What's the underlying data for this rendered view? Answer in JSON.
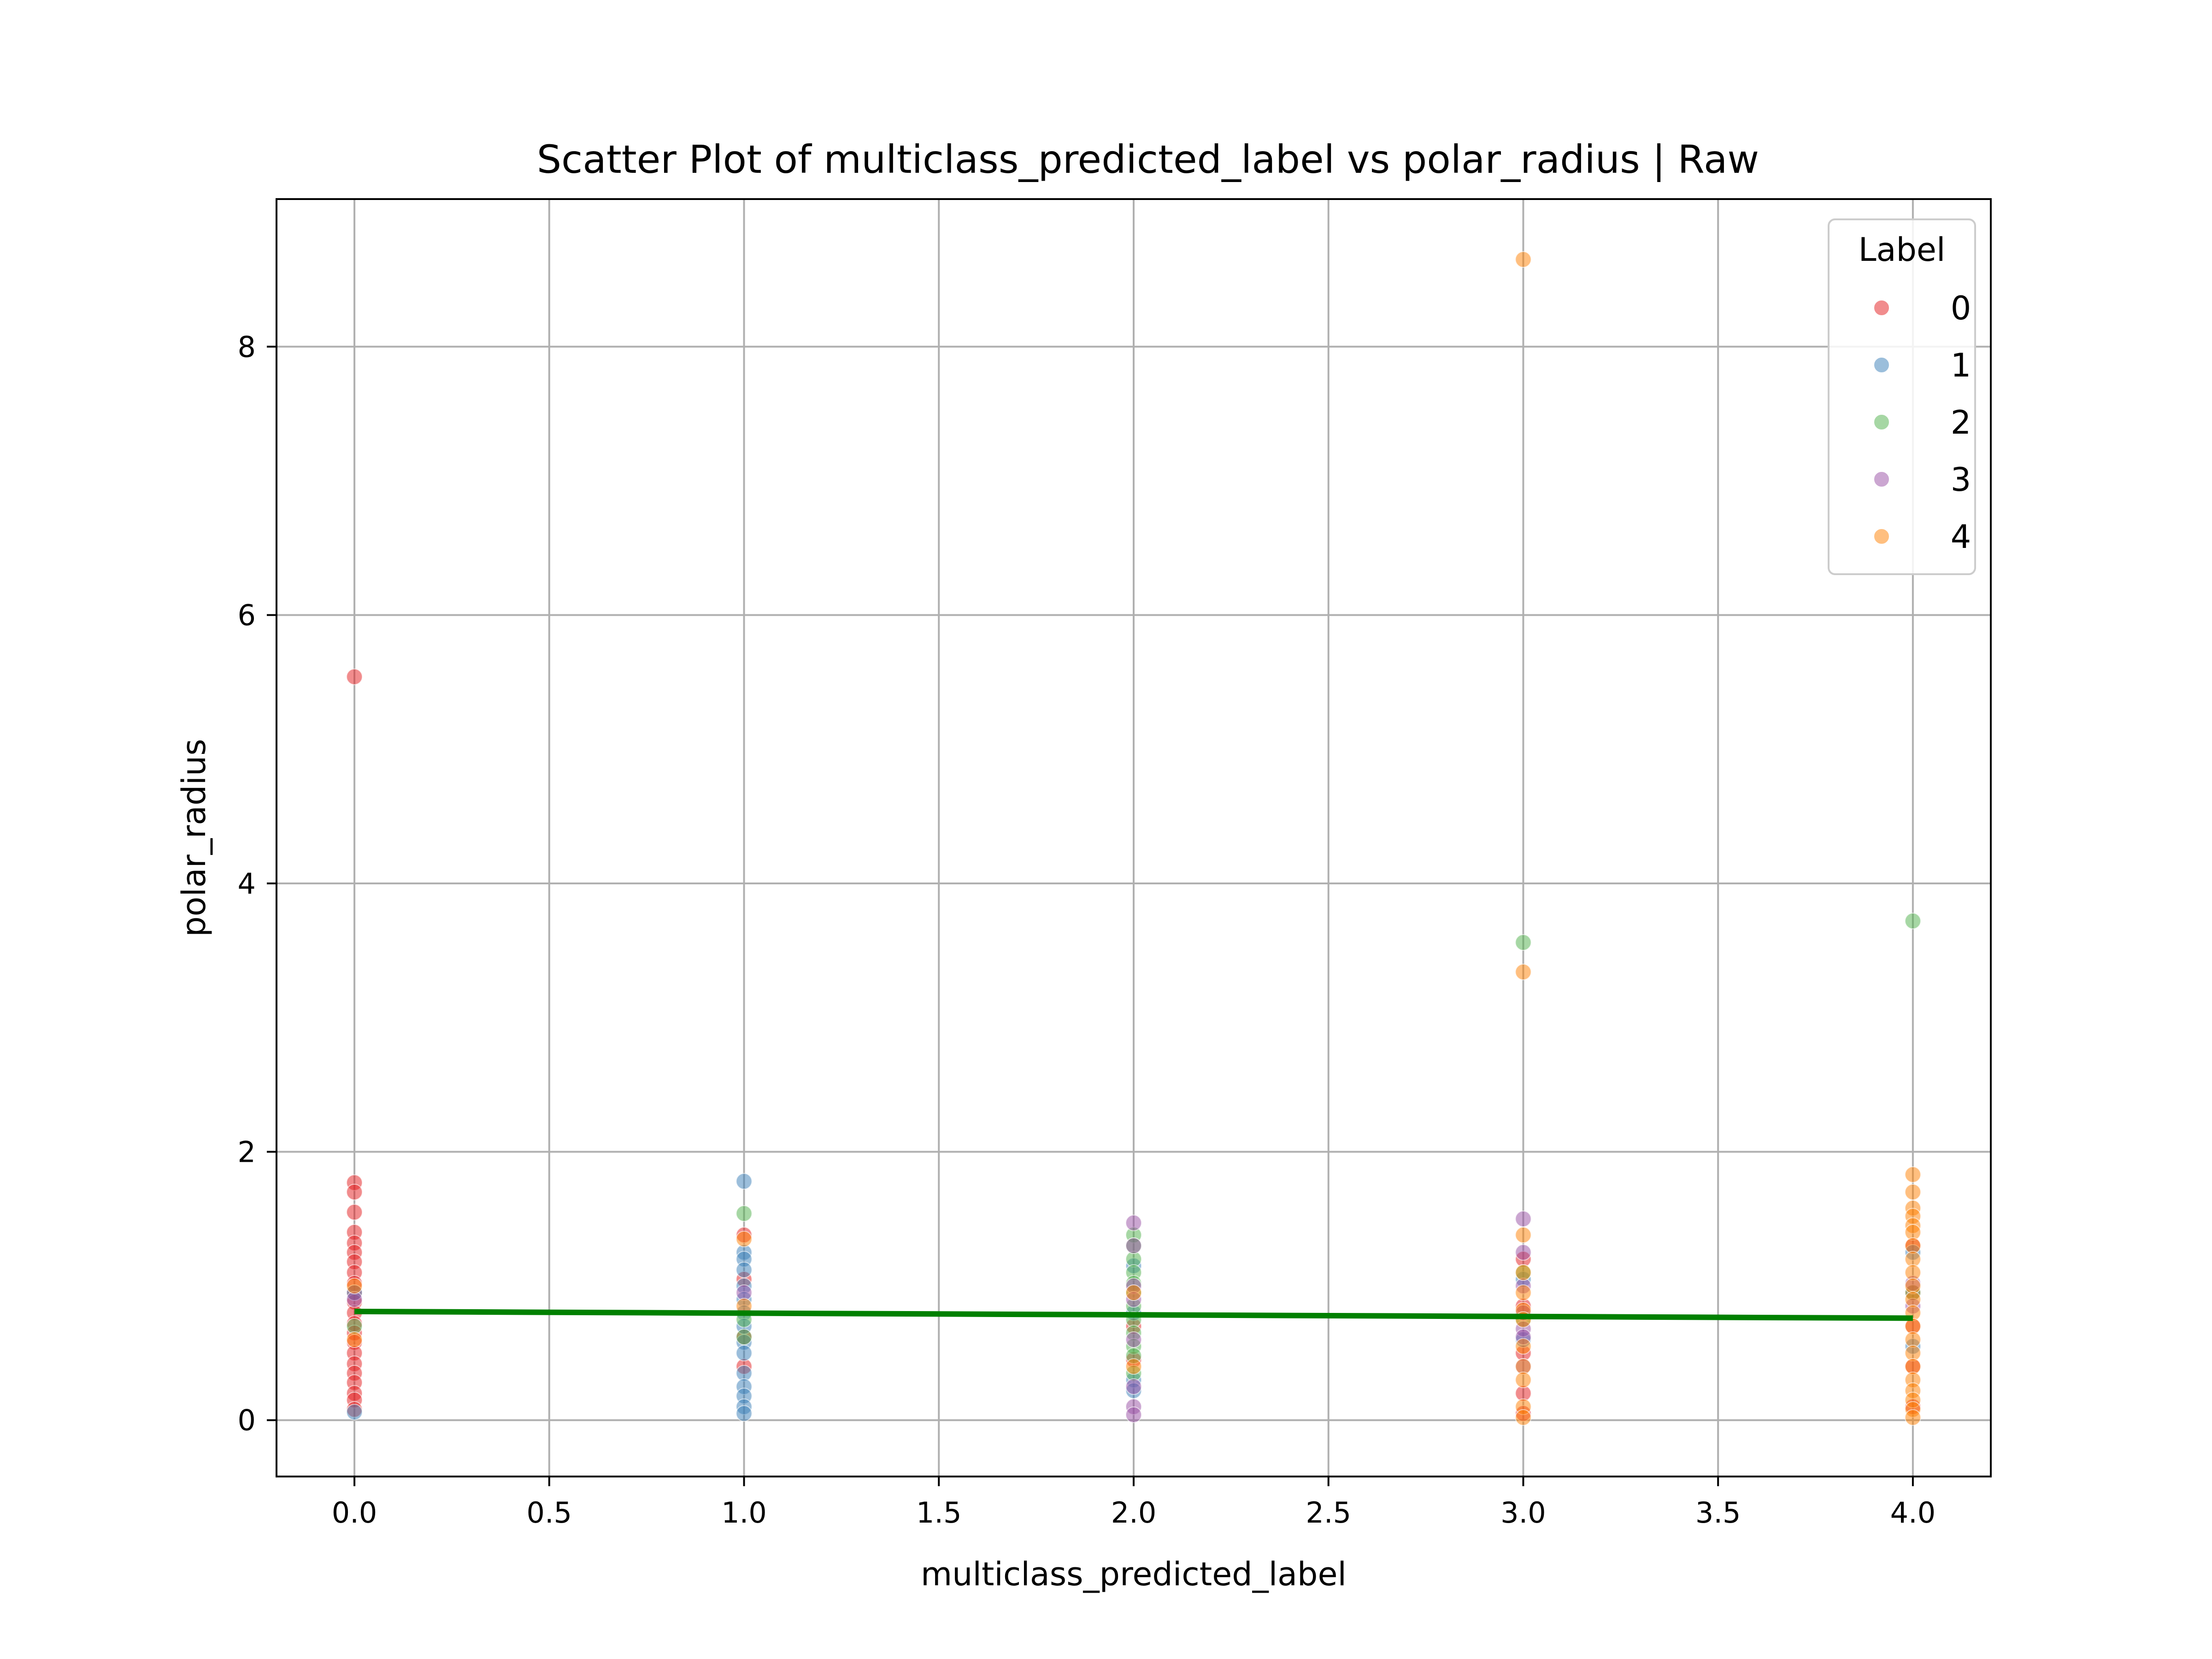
{
  "chart_data": {
    "type": "scatter",
    "title": "Scatter Plot of multiclass_predicted_label vs polar_radius | Raw",
    "xlabel": "multiclass_predicted_label",
    "ylabel": "polar_radius",
    "xlim": [
      -0.2,
      4.2
    ],
    "ylim": [
      -0.42,
      9.1
    ],
    "xticks": [
      0.0,
      0.5,
      1.0,
      1.5,
      2.0,
      2.5,
      3.0,
      3.5,
      4.0
    ],
    "xtick_labels": [
      "0.0",
      "0.5",
      "1.0",
      "1.5",
      "2.0",
      "2.5",
      "3.0",
      "3.5",
      "4.0"
    ],
    "yticks": [
      0,
      2,
      4,
      6,
      8
    ],
    "ytick_labels": [
      "0",
      "2",
      "4",
      "6",
      "8"
    ],
    "grid": true,
    "legend": {
      "title": "Label",
      "placement": "top-right",
      "entries": [
        {
          "label": "0",
          "color": "#e41a1c"
        },
        {
          "label": "1",
          "color": "#377eb8"
        },
        {
          "label": "2",
          "color": "#4daf4a"
        },
        {
          "label": "3",
          "color": "#984ea3"
        },
        {
          "label": "4",
          "color": "#ff7f00"
        }
      ]
    },
    "series": [
      {
        "label": "0",
        "color": "#e41a1c",
        "points": [
          [
            0,
            5.54
          ],
          [
            0,
            1.77
          ],
          [
            0,
            1.7
          ],
          [
            0,
            1.55
          ],
          [
            0,
            1.4
          ],
          [
            0,
            1.32
          ],
          [
            0,
            1.25
          ],
          [
            0,
            1.18
          ],
          [
            0,
            1.1
          ],
          [
            0,
            1.02
          ],
          [
            0,
            0.95
          ],
          [
            0,
            0.88
          ],
          [
            0,
            0.8
          ],
          [
            0,
            0.72
          ],
          [
            0,
            0.65
          ],
          [
            0,
            0.58
          ],
          [
            0,
            0.5
          ],
          [
            0,
            0.42
          ],
          [
            0,
            0.35
          ],
          [
            0,
            0.28
          ],
          [
            0,
            0.2
          ],
          [
            0,
            0.15
          ],
          [
            0,
            0.08
          ],
          [
            1,
            1.38
          ],
          [
            1,
            1.05
          ],
          [
            1,
            0.62
          ],
          [
            1,
            0.4
          ],
          [
            2,
            0.7
          ],
          [
            2,
            0.45
          ],
          [
            3,
            1.2
          ],
          [
            3,
            0.85
          ],
          [
            3,
            0.5
          ],
          [
            3,
            0.2
          ],
          [
            3,
            0.05
          ],
          [
            4,
            1.3
          ],
          [
            4,
            0.95
          ],
          [
            4,
            0.7
          ],
          [
            4,
            0.4
          ],
          [
            4,
            0.1
          ]
        ]
      },
      {
        "label": "1",
        "color": "#377eb8",
        "points": [
          [
            0,
            0.06
          ],
          [
            0,
            0.95
          ],
          [
            1,
            1.78
          ],
          [
            1,
            1.25
          ],
          [
            1,
            1.2
          ],
          [
            1,
            1.12
          ],
          [
            1,
            1.0
          ],
          [
            1,
            0.9
          ],
          [
            1,
            0.8
          ],
          [
            1,
            0.7
          ],
          [
            1,
            0.58
          ],
          [
            1,
            0.5
          ],
          [
            1,
            0.35
          ],
          [
            1,
            0.25
          ],
          [
            1,
            0.18
          ],
          [
            1,
            0.1
          ],
          [
            1,
            0.05
          ],
          [
            2,
            1.15
          ],
          [
            2,
            0.8
          ],
          [
            2,
            0.3
          ],
          [
            2,
            0.22
          ],
          [
            3,
            1.05
          ],
          [
            3,
            0.6
          ],
          [
            4,
            1.25
          ],
          [
            4,
            0.55
          ]
        ]
      },
      {
        "label": "2",
        "color": "#4daf4a",
        "points": [
          [
            0,
            0.7
          ],
          [
            1,
            1.54
          ],
          [
            1,
            0.75
          ],
          [
            1,
            0.62
          ],
          [
            2,
            1.38
          ],
          [
            2,
            1.3
          ],
          [
            2,
            1.2
          ],
          [
            2,
            1.1
          ],
          [
            2,
            1.02
          ],
          [
            2,
            0.95
          ],
          [
            2,
            0.85
          ],
          [
            2,
            0.75
          ],
          [
            2,
            0.65
          ],
          [
            2,
            0.55
          ],
          [
            2,
            0.48
          ],
          [
            2,
            0.35
          ],
          [
            3,
            3.56
          ],
          [
            3,
            1.1
          ],
          [
            3,
            0.75
          ],
          [
            4,
            3.72
          ],
          [
            4,
            0.95
          ]
        ]
      },
      {
        "label": "3",
        "color": "#984ea3",
        "points": [
          [
            0,
            0.9
          ],
          [
            1,
            0.95
          ],
          [
            2,
            1.47
          ],
          [
            2,
            1.3
          ],
          [
            2,
            1.0
          ],
          [
            2,
            0.9
          ],
          [
            2,
            0.6
          ],
          [
            2,
            0.25
          ],
          [
            2,
            0.1
          ],
          [
            2,
            0.04
          ],
          [
            3,
            1.5
          ],
          [
            3,
            1.25
          ],
          [
            3,
            1.0
          ],
          [
            3,
            0.8
          ],
          [
            3,
            0.68
          ],
          [
            3,
            0.62
          ],
          [
            3,
            0.4
          ],
          [
            4,
            1.02
          ],
          [
            4,
            0.85
          ]
        ]
      },
      {
        "label": "4",
        "color": "#ff7f00",
        "points": [
          [
            0,
            1.0
          ],
          [
            0,
            0.6
          ],
          [
            1,
            1.35
          ],
          [
            1,
            0.85
          ],
          [
            2,
            0.95
          ],
          [
            2,
            0.4
          ],
          [
            3,
            8.65
          ],
          [
            3,
            3.34
          ],
          [
            3,
            1.38
          ],
          [
            3,
            1.1
          ],
          [
            3,
            0.95
          ],
          [
            3,
            0.82
          ],
          [
            3,
            0.75
          ],
          [
            3,
            0.55
          ],
          [
            3,
            0.4
          ],
          [
            3,
            0.3
          ],
          [
            3,
            0.1
          ],
          [
            3,
            0.02
          ],
          [
            4,
            1.83
          ],
          [
            4,
            1.7
          ],
          [
            4,
            1.58
          ],
          [
            4,
            1.52
          ],
          [
            4,
            1.45
          ],
          [
            4,
            1.4
          ],
          [
            4,
            1.3
          ],
          [
            4,
            1.2
          ],
          [
            4,
            1.1
          ],
          [
            4,
            1.0
          ],
          [
            4,
            0.9
          ],
          [
            4,
            0.8
          ],
          [
            4,
            0.7
          ],
          [
            4,
            0.6
          ],
          [
            4,
            0.5
          ],
          [
            4,
            0.4
          ],
          [
            4,
            0.3
          ],
          [
            4,
            0.22
          ],
          [
            4,
            0.15
          ],
          [
            4,
            0.08
          ],
          [
            4,
            0.02
          ]
        ]
      }
    ],
    "trend_line": {
      "color": "#008000",
      "x": [
        0,
        4
      ],
      "y": [
        0.81,
        0.76
      ]
    }
  }
}
